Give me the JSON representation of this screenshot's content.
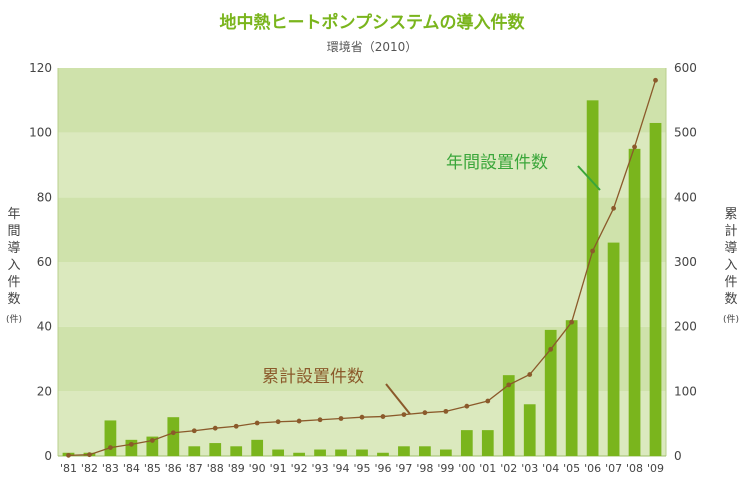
{
  "chart_data": {
    "type": "bar",
    "title": "地中熱ヒートポンプシステムの導入件数",
    "subtitle": "環境省（2010）",
    "categories": [
      "'81",
      "'82",
      "'83",
      "'84",
      "'85",
      "'86",
      "'87",
      "'88",
      "'89",
      "'90",
      "'91",
      "'92",
      "'93",
      "'94",
      "'95",
      "'96",
      "'97",
      "'98",
      "'99",
      "'00",
      "'01",
      "'02",
      "'03",
      "'04",
      "'05",
      "'06",
      "'07",
      "'08",
      "'09"
    ],
    "ylabel_left": "年間導入件数",
    "ylabel_left_unit": "(件)",
    "ylabel_right": "累計導入件数",
    "ylabel_right_unit": "(件)",
    "ylim_left": [
      0,
      120
    ],
    "yticks_left": [
      0,
      20,
      40,
      60,
      80,
      100,
      120
    ],
    "ylim_right": [
      0,
      600
    ],
    "yticks_right": [
      0,
      100,
      200,
      300,
      400,
      500,
      600
    ],
    "series": [
      {
        "name": "年間設置件数",
        "type": "bar",
        "axis": "left",
        "color": "#7ab51d",
        "values": [
          1,
          1,
          11,
          5,
          6,
          12,
          3,
          4,
          3,
          5,
          2,
          1,
          2,
          2,
          2,
          1,
          3,
          3,
          2,
          8,
          8,
          25,
          16,
          39,
          42,
          110,
          66,
          95,
          103
        ]
      },
      {
        "name": "累計設置件数",
        "type": "line",
        "axis": "right",
        "color": "#8b5a2b",
        "values": [
          1,
          2,
          13,
          18,
          24,
          36,
          39,
          43,
          46,
          51,
          53,
          54,
          56,
          58,
          60,
          61,
          64,
          67,
          69,
          77,
          85,
          110,
          126,
          165,
          207,
          317,
          383,
          478,
          581
        ]
      }
    ],
    "annotations": [
      {
        "text": "年間設置件数",
        "color": "#3aa63a"
      },
      {
        "text": "累計設置件数",
        "color": "#8b5a2b"
      }
    ],
    "colors": {
      "band_light": "#dbe9be",
      "band_dark": "#cfe2ab",
      "bar": "#7ab51d",
      "line": "#8b5a2b",
      "title": "#7ab51d"
    },
    "grid": true
  }
}
